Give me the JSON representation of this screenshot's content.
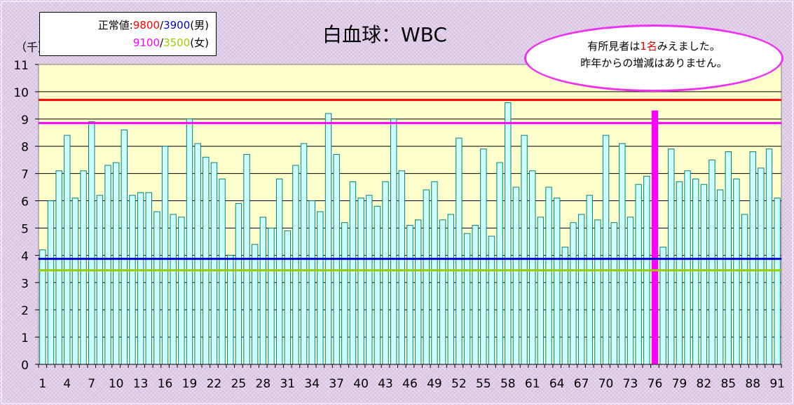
{
  "chart_data": {
    "type": "bar",
    "title": "白血球：WBC",
    "unit_label": "（千）",
    "ylim": [
      0,
      11
    ],
    "y_ticks": [
      0,
      1,
      2,
      3,
      4,
      5,
      6,
      7,
      8,
      9,
      10,
      11
    ],
    "x_tick_labels": [
      "1",
      "4",
      "7",
      "10",
      "13",
      "16",
      "19",
      "22",
      "25",
      "28",
      "31",
      "34",
      "37",
      "40",
      "43",
      "46",
      "49",
      "52",
      "55",
      "58",
      "61",
      "64",
      "67",
      "70",
      "73",
      "76",
      "79",
      "82",
      "85",
      "88",
      "91"
    ],
    "values": [
      4.2,
      6.0,
      7.1,
      8.4,
      6.1,
      7.1,
      8.9,
      6.2,
      7.3,
      7.4,
      8.6,
      6.2,
      6.3,
      6.3,
      5.6,
      8.0,
      5.5,
      5.4,
      9.0,
      8.1,
      7.6,
      7.4,
      6.8,
      4.0,
      5.9,
      7.7,
      4.4,
      5.4,
      5.0,
      6.8,
      4.9,
      7.3,
      8.1,
      6.0,
      5.6,
      9.2,
      7.7,
      5.2,
      6.7,
      6.1,
      6.2,
      5.8,
      6.7,
      9.0,
      7.1,
      5.1,
      5.3,
      6.4,
      6.7,
      5.3,
      5.5,
      8.3,
      4.8,
      5.1,
      7.9,
      4.7,
      7.4,
      9.6,
      6.5,
      8.4,
      7.1,
      5.4,
      6.5,
      6.1,
      4.3,
      5.2,
      5.5,
      6.2,
      5.3,
      8.4,
      5.2,
      8.1,
      5.4,
      6.6,
      6.9,
      9.3,
      4.3,
      7.9,
      6.7,
      7.1,
      6.8,
      6.6,
      7.5,
      6.4,
      7.8,
      6.8,
      5.5,
      7.8,
      7.2,
      7.9,
      6.1
    ],
    "highlight_index": 75,
    "reference_lines": [
      {
        "value": 9.7,
        "color": "#ff0000"
      },
      {
        "value": 8.85,
        "color": "#ff00ff"
      },
      {
        "value": 3.87,
        "color": "#0000cc"
      },
      {
        "value": 3.45,
        "color": "#99cc00"
      }
    ],
    "bar_color": "#ccffff",
    "bar_border": "#008080",
    "highlight_color": "#ff00ff",
    "plot_bg": "#ffffcc",
    "grid": true
  },
  "legend": {
    "line1_prefix": "正常値:",
    "male_upper": "9800",
    "sep1": "/",
    "male_lower": "3900",
    "male_suffix": "(男)",
    "female_upper": "9100",
    "sep2": "/",
    "female_lower": "3500",
    "female_suffix": "(女)"
  },
  "note": {
    "line1_a": "有所見者は",
    "line1_b": "1名",
    "line1_c": "みえました。",
    "line2": "昨年からの増減はありません。"
  }
}
